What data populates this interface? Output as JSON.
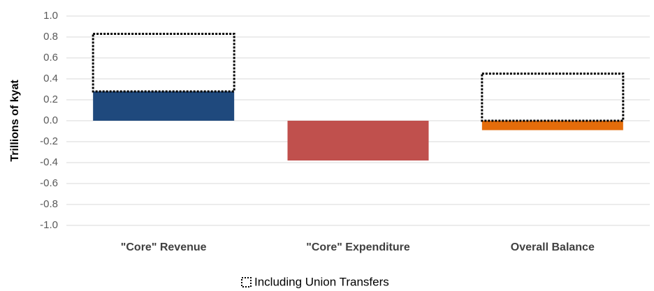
{
  "chart_data": {
    "type": "bar",
    "y_label": "Trillions of kyat",
    "categories": [
      "\"Core\" Revenue",
      "\"Core\" Expenditure",
      "Overall Balance"
    ],
    "values": [
      0.28,
      -0.38,
      -0.09
    ],
    "colors": [
      "#1f497d",
      "#c0504d",
      "#e46c0a"
    ],
    "series": [
      {
        "name": "Including Union Transfers",
        "style": "dotted-outline",
        "values": [
          0.83,
          null,
          0.45
        ]
      }
    ],
    "ylim": [
      -1.0,
      1.0
    ],
    "yticks": [
      {
        "value": 1.0,
        "label": "1.0"
      },
      {
        "value": 0.8,
        "label": "0.8"
      },
      {
        "value": 0.6,
        "label": "0.6"
      },
      {
        "value": 0.4,
        "label": "0.4"
      },
      {
        "value": 0.2,
        "label": "0.2"
      },
      {
        "value": 0.0,
        "label": "0.0"
      },
      {
        "value": -0.2,
        "label": "-0.2"
      },
      {
        "value": -0.4,
        "label": "-0.4"
      },
      {
        "value": -0.6,
        "label": "-0.6"
      },
      {
        "value": -0.8,
        "label": "-0.8"
      },
      {
        "value": -1.0,
        "label": "-1.0"
      }
    ],
    "grid": true
  }
}
